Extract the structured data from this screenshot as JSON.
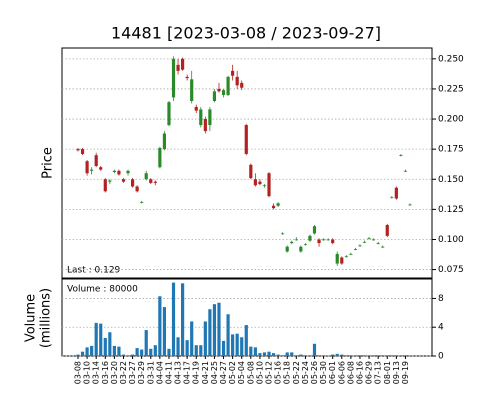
{
  "chart_data": {
    "type": "candlestick",
    "title": "14481   [2023-03-08 / 2023-09-27]",
    "ylabel": "Price",
    "annotation": "Last : 0.129",
    "up_color": "#2a8a2a",
    "down_color": "#b22222",
    "categories": [
      "03-08",
      null,
      "03-10",
      null,
      "03-14",
      null,
      "03-16",
      null,
      "03-20",
      null,
      "03-22",
      null,
      "03-27",
      null,
      "03-29",
      null,
      "03-31",
      null,
      "04-04",
      null,
      "04-11",
      null,
      "04-13",
      null,
      "04-17",
      null,
      "04-19",
      null,
      "04-21",
      null,
      "04-25",
      null,
      "04-27",
      null,
      "05-02",
      null,
      "05-04",
      null,
      "05-08",
      null,
      "05-10",
      null,
      "05-12",
      null,
      "05-16",
      null,
      "05-18",
      null,
      "05-22",
      null,
      "05-24",
      null,
      "05-26",
      null,
      "05-30",
      null,
      "06-01",
      null,
      "06-06",
      null,
      "06-08",
      null,
      "06-16",
      null,
      "06-29",
      null,
      "07-13",
      null,
      "08-01",
      null,
      "09-13",
      null,
      "09-19",
      null
    ],
    "open": [
      0.175,
      0.175,
      0.165,
      0.157,
      0.17,
      0.16,
      0.15,
      0.148,
      0.156,
      0.157,
      0.15,
      0.155,
      0.15,
      0.144,
      0.131,
      0.15,
      0.15,
      0.148,
      0.16,
      0.175,
      0.195,
      0.218,
      0.245,
      0.25,
      0.235,
      0.215,
      0.21,
      0.195,
      0.2,
      0.195,
      0.215,
      0.225,
      0.22,
      0.22,
      0.24,
      0.235,
      0.23,
      0.195,
      0.162,
      0.15,
      0.148,
      0.145,
      0.155,
      0.128,
      0.128,
      0.105,
      0.09,
      0.097,
      0.1,
      0.09,
      0.096,
      0.099,
      0.105,
      0.1,
      0.1,
      0.1,
      0.1,
      0.08,
      0.085,
      0.086,
      0.088,
      0.092,
      0.095,
      0.098,
      0.101,
      0.1,
      0.097,
      0.094,
      0.112,
      0.135,
      0.143,
      0.17,
      0.157,
      0.129
    ],
    "high": [
      0.176,
      0.176,
      0.166,
      0.16,
      0.172,
      0.161,
      0.151,
      0.15,
      0.158,
      0.158,
      0.151,
      0.158,
      0.151,
      0.145,
      0.132,
      0.157,
      0.151,
      0.149,
      0.177,
      0.19,
      0.215,
      0.252,
      0.25,
      0.251,
      0.237,
      0.24,
      0.212,
      0.21,
      0.202,
      0.21,
      0.225,
      0.23,
      0.225,
      0.236,
      0.245,
      0.24,
      0.232,
      0.196,
      0.163,
      0.155,
      0.15,
      0.146,
      0.156,
      0.13,
      0.131,
      0.106,
      0.095,
      0.099,
      0.102,
      0.095,
      0.097,
      0.104,
      0.112,
      0.101,
      0.101,
      0.101,
      0.101,
      0.09,
      0.086,
      0.087,
      0.089,
      0.093,
      0.096,
      0.099,
      0.102,
      0.101,
      0.098,
      0.095,
      0.113,
      0.136,
      0.144,
      0.171,
      0.158,
      0.13
    ],
    "low": [
      0.173,
      0.17,
      0.153,
      0.154,
      0.16,
      0.157,
      0.139,
      0.146,
      0.155,
      0.153,
      0.147,
      0.153,
      0.143,
      0.139,
      0.13,
      0.149,
      0.146,
      0.145,
      0.159,
      0.174,
      0.194,
      0.215,
      0.237,
      0.24,
      0.232,
      0.213,
      0.205,
      0.193,
      0.188,
      0.19,
      0.214,
      0.222,
      0.218,
      0.219,
      0.232,
      0.225,
      0.224,
      0.17,
      0.15,
      0.144,
      0.145,
      0.143,
      0.135,
      0.125,
      0.127,
      0.104,
      0.089,
      0.096,
      0.099,
      0.089,
      0.095,
      0.098,
      0.104,
      0.094,
      0.099,
      0.099,
      0.096,
      0.078,
      0.079,
      0.085,
      0.087,
      0.091,
      0.094,
      0.097,
      0.1,
      0.099,
      0.096,
      0.093,
      0.102,
      0.134,
      0.133,
      0.169,
      0.156,
      0.128
    ],
    "close": [
      0.174,
      0.171,
      0.155,
      0.158,
      0.161,
      0.158,
      0.14,
      0.149,
      0.157,
      0.154,
      0.148,
      0.157,
      0.144,
      0.14,
      0.131,
      0.155,
      0.147,
      0.147,
      0.176,
      0.188,
      0.214,
      0.25,
      0.24,
      0.241,
      0.234,
      0.233,
      0.207,
      0.208,
      0.19,
      0.208,
      0.223,
      0.223,
      0.224,
      0.235,
      0.236,
      0.228,
      0.226,
      0.171,
      0.151,
      0.145,
      0.146,
      0.145,
      0.136,
      0.126,
      0.13,
      0.105,
      0.094,
      0.098,
      0.1,
      0.094,
      0.096,
      0.103,
      0.111,
      0.097,
      0.1,
      0.1,
      0.097,
      0.088,
      0.08,
      0.086,
      0.088,
      0.092,
      0.095,
      0.098,
      0.101,
      0.1,
      0.097,
      0.094,
      0.103,
      0.135,
      0.134,
      0.17,
      0.157,
      0.129
    ],
    "ylim": [
      0.068,
      0.259
    ],
    "yticks": [
      {
        "value": 0.075,
        "label": "0.075"
      },
      {
        "value": 0.1,
        "label": "0.100"
      },
      {
        "value": 0.125,
        "label": "0.125"
      },
      {
        "value": 0.15,
        "label": "0.150"
      },
      {
        "value": 0.175,
        "label": "0.175"
      },
      {
        "value": 0.2,
        "label": "0.200"
      },
      {
        "value": 0.225,
        "label": "0.225"
      },
      {
        "value": 0.25,
        "label": "0.250"
      }
    ],
    "grid": true,
    "volume": {
      "ylabel": "Volume\n(millions)",
      "annotation": "Volume : 80000",
      "color": "#1f77b4",
      "values": [
        0.2,
        0.6,
        1.2,
        1.4,
        4.6,
        4.5,
        2.5,
        3.3,
        1.4,
        1.3,
        0.2,
        0.1,
        0.2,
        1.1,
        0.9,
        3.6,
        1.0,
        1.5,
        8.3,
        6.8,
        1.0,
        10.2,
        2.6,
        10.1,
        2.2,
        4.8,
        1.5,
        1.5,
        4.8,
        6.5,
        7.2,
        7.4,
        2.1,
        5.8,
        3.0,
        3.1,
        2.6,
        4.3,
        1.3,
        1.2,
        0.4,
        0.5,
        0.6,
        0.4,
        0.2,
        0.1,
        0.5,
        0.5,
        0.1,
        0.2,
        0.1,
        0.1,
        1.7,
        0.1,
        0.1,
        0.05,
        0.2,
        0.3,
        0.2,
        0.1,
        0.1,
        0.1,
        0.1,
        0.1,
        0.1,
        0.1,
        0.1,
        0.1,
        0.1,
        0.1,
        0.1,
        0.1,
        0.1,
        0.08
      ],
      "ylim": [
        0,
        10.7
      ],
      "yticks": [
        0,
        4,
        8
      ]
    }
  }
}
